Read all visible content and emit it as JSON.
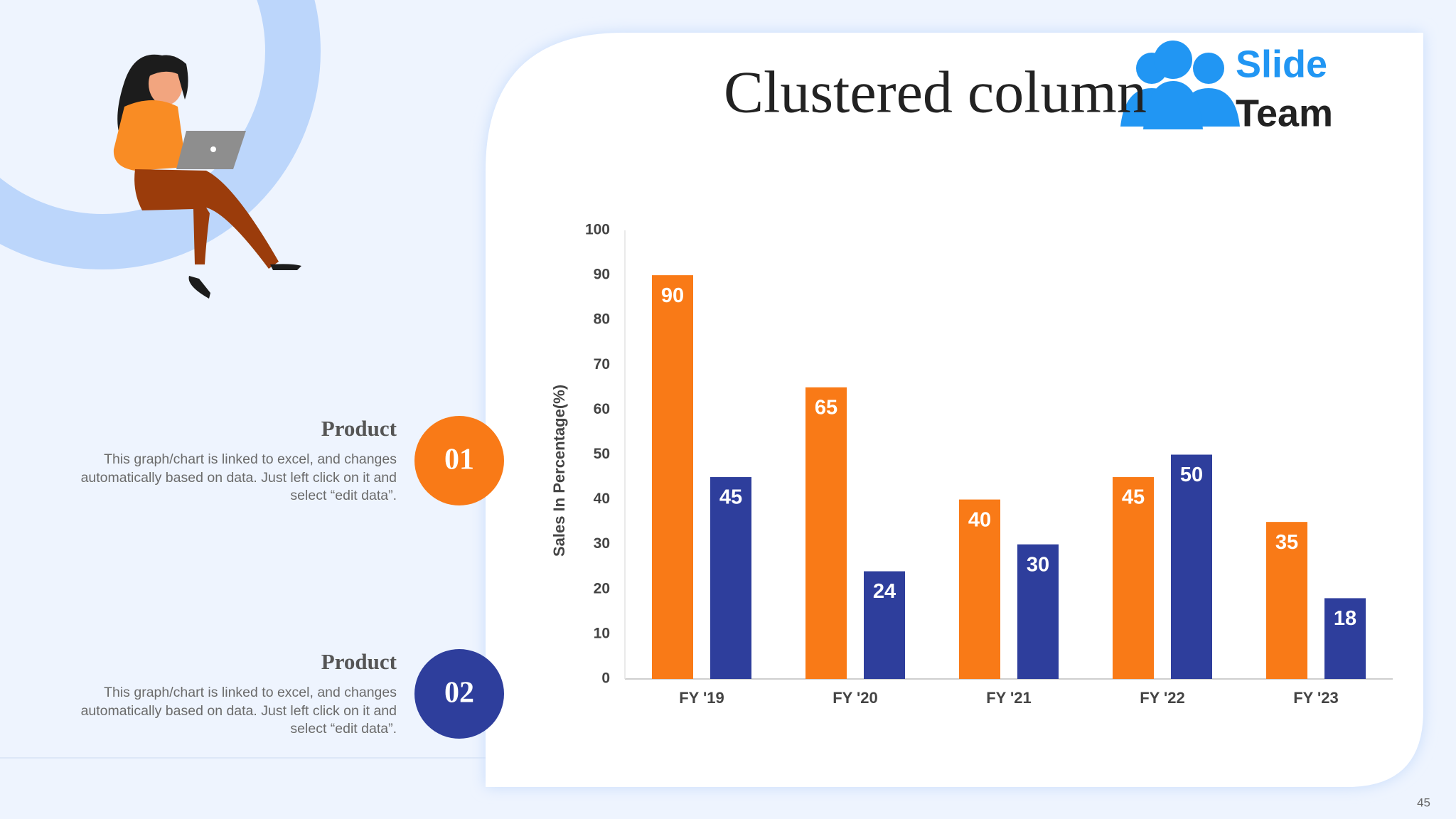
{
  "chart_data": {
    "type": "bar",
    "title": "Clustered column",
    "y_label": "Sales In Percentage(%)",
    "categories": [
      "FY '19",
      "FY '20",
      "FY '21",
      "FY '22",
      "FY '23"
    ],
    "series": [
      {
        "name": "Product",
        "marker": "01",
        "description": "This graph/chart is linked to excel, and changes automatically based on data. Just left click on it and select “edit data”.",
        "color": "#f97a17",
        "values": [
          90,
          65,
          40,
          45,
          35
        ]
      },
      {
        "name": "Product",
        "marker": "02",
        "description": "This graph/chart is linked to excel, and changes automatically based on data. Just left click on it and select “edit data”.",
        "color": "#2e3e9c",
        "values": [
          45,
          24,
          30,
          50,
          18
        ]
      }
    ],
    "ylim": [
      0,
      100
    ],
    "yticks": [
      0,
      10,
      20,
      30,
      40,
      50,
      60,
      70,
      80,
      90,
      100
    ],
    "grid": false
  },
  "logo": {
    "line1": "Slide",
    "line2": "Team"
  },
  "page_number": "45"
}
